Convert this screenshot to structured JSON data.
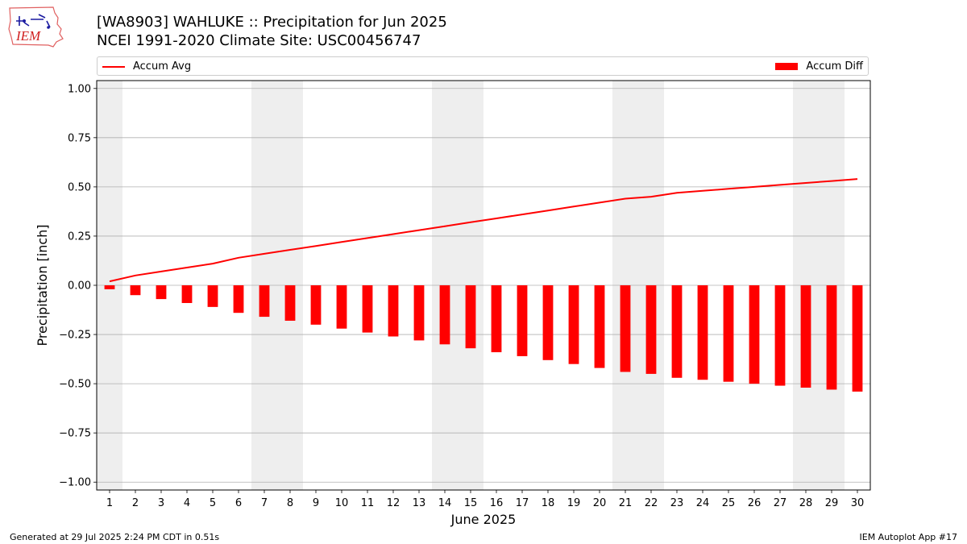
{
  "title_line1": "[WA8903] WAHLUKE :: Precipitation for Jun 2025",
  "title_line2": "NCEI 1991-2020 Climate Site: USC00456747",
  "logo_text": "IEM",
  "legend": {
    "line_label": "Accum Avg",
    "bar_label": "Accum Diff"
  },
  "footer": {
    "left": "Generated at 29 Jul 2025 2:24 PM CDT in 0.51s",
    "right": "IEM Autoplot App #17"
  },
  "colors": {
    "series": "#ff0000",
    "weekend_shade": "#eeeeee",
    "grid": "#b0b0b0"
  },
  "chart_data": {
    "type": "bar",
    "xlabel": "June 2025",
    "ylabel": "Precipitation [inch]",
    "ylim": [
      -1.04,
      1.04
    ],
    "xlim": [
      0.5,
      30.5
    ],
    "yticks": [
      1.0,
      0.75,
      0.5,
      0.25,
      0.0,
      -0.25,
      -0.5,
      -0.75,
      -1.0
    ],
    "ytick_labels": [
      "1.00",
      "0.75",
      "0.50",
      "0.25",
      "0.00",
      "−0.25",
      "−0.50",
      "−0.75",
      "−1.00"
    ],
    "x": [
      1,
      2,
      3,
      4,
      5,
      6,
      7,
      8,
      9,
      10,
      11,
      12,
      13,
      14,
      15,
      16,
      17,
      18,
      19,
      20,
      21,
      22,
      23,
      24,
      25,
      26,
      27,
      28,
      29,
      30
    ],
    "grid": "horizontal",
    "legend_placement": "top",
    "shaded_days": [
      [
        0.5,
        1.5
      ],
      [
        6.5,
        8.5
      ],
      [
        13.5,
        15.5
      ],
      [
        20.5,
        22.5
      ],
      [
        27.5,
        29.5
      ]
    ],
    "series": [
      {
        "name": "Accum Avg",
        "type": "line",
        "values": [
          0.02,
          0.05,
          0.07,
          0.09,
          0.11,
          0.14,
          0.16,
          0.18,
          0.2,
          0.22,
          0.24,
          0.26,
          0.28,
          0.3,
          0.32,
          0.34,
          0.36,
          0.38,
          0.4,
          0.42,
          0.44,
          0.45,
          0.47,
          0.48,
          0.49,
          0.5,
          0.51,
          0.52,
          0.53,
          0.54
        ]
      },
      {
        "name": "Accum Diff",
        "type": "bar",
        "values": [
          -0.02,
          -0.05,
          -0.07,
          -0.09,
          -0.11,
          -0.14,
          -0.16,
          -0.18,
          -0.2,
          -0.22,
          -0.24,
          -0.26,
          -0.28,
          -0.3,
          -0.32,
          -0.34,
          -0.36,
          -0.38,
          -0.4,
          -0.42,
          -0.44,
          -0.45,
          -0.47,
          -0.48,
          -0.49,
          -0.5,
          -0.51,
          -0.52,
          -0.53,
          -0.54
        ]
      }
    ]
  }
}
